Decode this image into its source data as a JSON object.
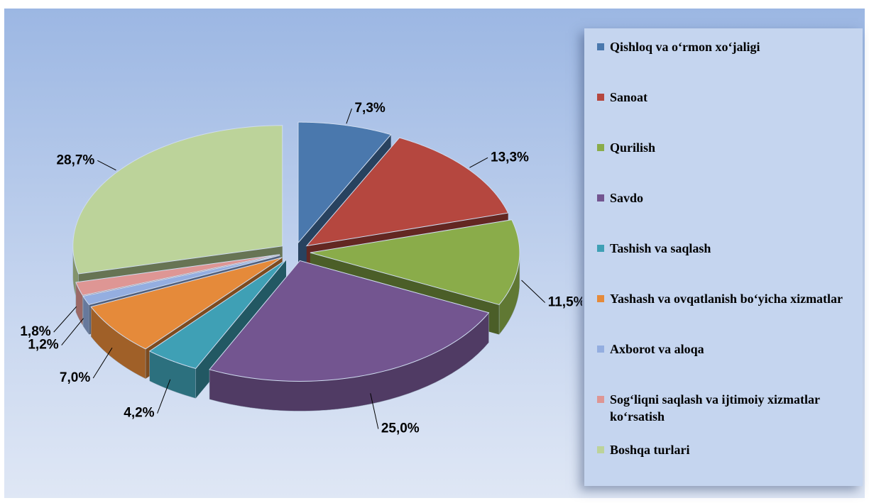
{
  "chart_data": {
    "type": "pie",
    "categories": [
      "Qishloq va o‘rmon xo‘jaligi",
      "Sanoat",
      "Qurilish",
      "Savdo",
      "Tashish va saqlash",
      "Yashash va ovqatlanish bo‘yicha xizmatlar",
      "Axborot va aloqa",
      "Sog‘liqni saqlash va ijtimoiy xizmatlar ko‘rsatish",
      "Boshqa turlari"
    ],
    "values": [
      7.3,
      13.3,
      11.5,
      25.0,
      4.2,
      7.0,
      1.2,
      1.8,
      28.7
    ],
    "value_labels": [
      "7,3%",
      "13,3%",
      "11,5%",
      "25,0%",
      "4,2%",
      "7,0%",
      "1,2%",
      "1,8%",
      "28,7%"
    ],
    "colors": [
      "#4a78ad",
      "#b5473f",
      "#8aac4a",
      "#735590",
      "#3fa0b5",
      "#e58a3a",
      "#94aee0",
      "#de9694",
      "#bcd39a"
    ],
    "legend": "right"
  }
}
